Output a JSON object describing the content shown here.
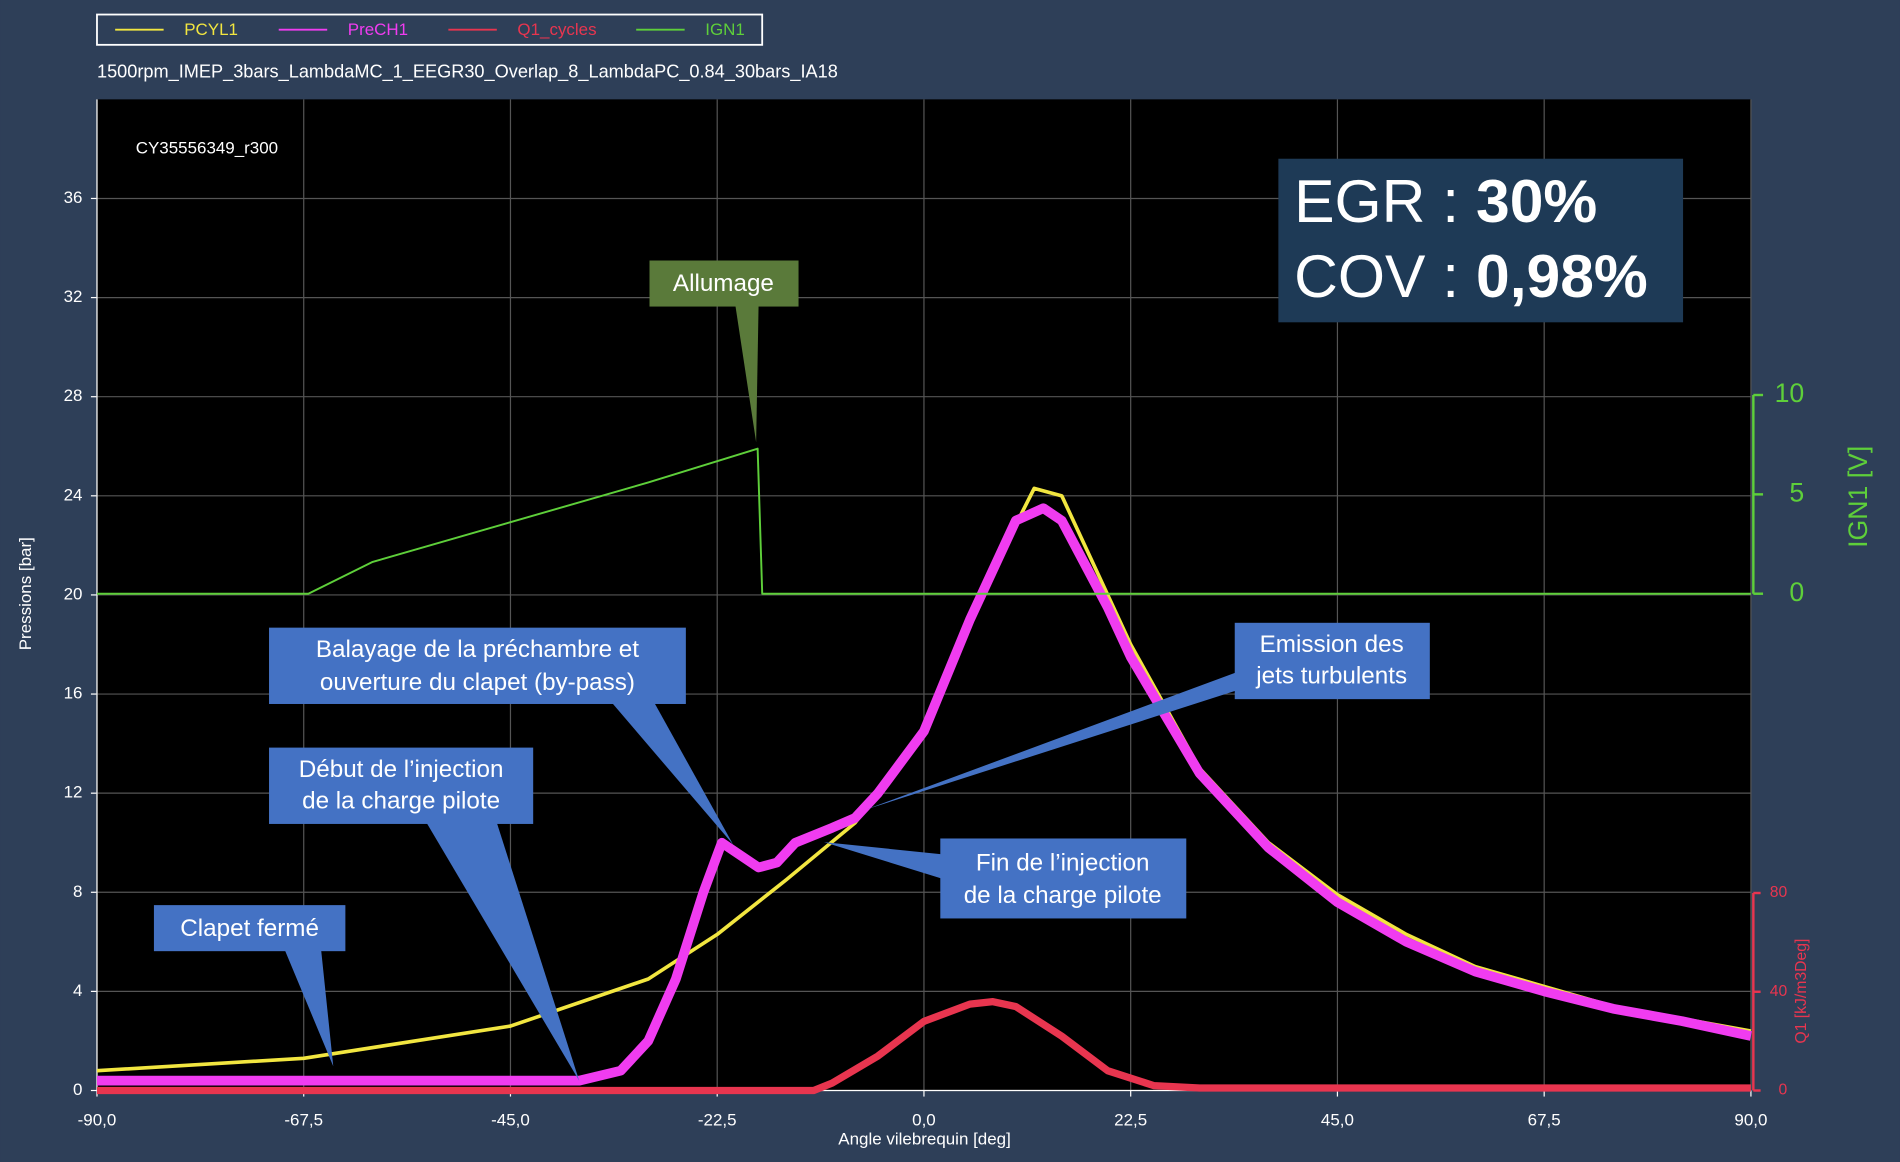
{
  "chart_data": {
    "type": "line",
    "subtitle": "1500rpm_IMEP_3bars_LambdaMC_1_EEGR30_Overlap_8_LambdaPC_0.84_30bars_IA18",
    "inner_label": "CY35556349_r300",
    "x_label": "Angle vilebrequin [deg]",
    "y_label": "Pressions [bar]",
    "y2_label": "IGN1 [V]",
    "y3_label": "Q1 [kJ/m3Deg]",
    "xlim": [
      -90,
      90
    ],
    "xticks": [
      {
        "value": -90,
        "label": "-90,0"
      },
      {
        "value": -67.5,
        "label": "-67,5"
      },
      {
        "value": -45,
        "label": "-45,0"
      },
      {
        "value": -22.5,
        "label": "-22,5"
      },
      {
        "value": 0,
        "label": "0,0"
      },
      {
        "value": 22.5,
        "label": "22,5"
      },
      {
        "value": 45,
        "label": "45,0"
      },
      {
        "value": 67.5,
        "label": "67,5"
      },
      {
        "value": 90,
        "label": "90,0"
      }
    ],
    "ylim": [
      0,
      40
    ],
    "yticks": [
      0,
      4,
      8,
      12,
      16,
      20,
      24,
      28,
      32,
      36
    ],
    "y2lim": [
      0,
      10
    ],
    "y2ticks": [
      0,
      5,
      10
    ],
    "y3lim": [
      0,
      80
    ],
    "y3ticks": [
      0,
      40,
      80
    ],
    "grid": true,
    "series": [
      {
        "name": "PCYL1",
        "color": "#f2e640",
        "x": [
          -90,
          -67.5,
          -45,
          -30,
          -22.5,
          -15,
          -7.5,
          0,
          7.5,
          12,
          15,
          22.5,
          30,
          37.5,
          45,
          52.5,
          60,
          67.5,
          75,
          82.5,
          90
        ],
        "values": [
          0.8,
          1.3,
          2.6,
          4.5,
          6.3,
          8.5,
          10.8,
          14.5,
          21,
          24.3,
          24,
          18,
          13,
          10,
          7.9,
          6.3,
          5,
          4.2,
          3.4,
          2.9,
          2.4
        ]
      },
      {
        "name": "PreCH1",
        "color": "#f03cf0",
        "x": [
          -90,
          -45,
          -37.5,
          -33,
          -30,
          -27,
          -24,
          -22,
          -20,
          -18,
          -16,
          -14,
          -10,
          -7.5,
          -5,
          0,
          5,
          10,
          13,
          15,
          20,
          22.5,
          30,
          37.5,
          45,
          52.5,
          60,
          67.5,
          75,
          82.5,
          90
        ],
        "values": [
          0.4,
          0.4,
          0.4,
          0.8,
          2,
          4.5,
          8,
          10,
          9.5,
          9,
          9.2,
          10,
          10.6,
          11,
          12,
          14.5,
          19,
          23,
          23.5,
          23,
          19.5,
          17.5,
          12.8,
          9.8,
          7.6,
          6,
          4.8,
          4,
          3.3,
          2.8,
          2.2
        ]
      },
      {
        "name": "Q1_cycles",
        "color": "#e8354f",
        "axis": "y3",
        "x": [
          -90,
          -12,
          -10,
          -5,
          0,
          5,
          7.5,
          10,
          15,
          20,
          25,
          30,
          90
        ],
        "values": [
          0,
          0,
          3,
          14,
          28,
          35,
          36,
          34,
          22,
          8,
          2,
          1,
          1
        ]
      },
      {
        "name": "IGN1",
        "color": "#5ecf3a",
        "axis": "y2",
        "x": [
          -90,
          -67,
          -60,
          -45,
          -30,
          -18.1,
          -17.6,
          90
        ],
        "values": [
          0,
          0,
          1.6,
          3.6,
          5.6,
          7.3,
          0,
          0
        ]
      }
    ],
    "annotations": [
      [
        "Allumage"
      ],
      [
        "Balayage de la préchambre et",
        "ouverture du clapet (by-pass)"
      ],
      [
        "Début de l’injection",
        "de la charge pilote"
      ],
      [
        "Clapet fermé"
      ],
      [
        "Fin de l’injection",
        "de la charge pilote"
      ],
      [
        "Emission des",
        "jets turbulents"
      ]
    ],
    "info_box": [
      {
        "label": "EGR :",
        "value": "30%"
      },
      {
        "label": "COV :",
        "value": "0,98%"
      }
    ]
  }
}
